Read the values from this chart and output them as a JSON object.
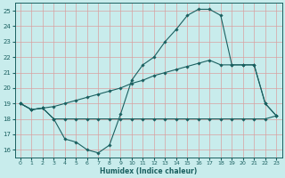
{
  "xlabel": "Humidex (Indice chaleur)",
  "bg_color": "#c8ecec",
  "grid_color": "#d8a0a0",
  "line_color": "#1a6060",
  "xlim": [
    -0.5,
    23.5
  ],
  "ylim": [
    15.5,
    25.5
  ],
  "xticks": [
    0,
    1,
    2,
    3,
    4,
    5,
    6,
    7,
    8,
    9,
    10,
    11,
    12,
    13,
    14,
    15,
    16,
    17,
    18,
    19,
    20,
    21,
    22,
    23
  ],
  "yticks": [
    16,
    17,
    18,
    19,
    20,
    21,
    22,
    23,
    24,
    25
  ],
  "series1_x": [
    0,
    1,
    2,
    3,
    4,
    5,
    6,
    7,
    8,
    9,
    10,
    11,
    12,
    13,
    14,
    15,
    16,
    17,
    18,
    19,
    20,
    21,
    22,
    23
  ],
  "series1_y": [
    19.0,
    18.6,
    18.7,
    18.0,
    18.0,
    18.0,
    18.0,
    18.0,
    18.0,
    18.0,
    18.0,
    18.0,
    18.0,
    18.0,
    18.0,
    18.0,
    18.0,
    18.0,
    18.0,
    18.0,
    18.0,
    18.0,
    18.0,
    18.2
  ],
  "series2_x": [
    0,
    1,
    2,
    3,
    4,
    5,
    6,
    7,
    8,
    9,
    10,
    11,
    12,
    13,
    14,
    15,
    16,
    17,
    18,
    19,
    20,
    21,
    22,
    23
  ],
  "series2_y": [
    19.0,
    18.6,
    18.7,
    18.8,
    19.0,
    19.2,
    19.4,
    19.6,
    19.8,
    20.0,
    20.3,
    20.5,
    20.8,
    21.0,
    21.2,
    21.4,
    21.6,
    21.8,
    21.5,
    21.5,
    21.5,
    21.5,
    19.0,
    18.2
  ],
  "series3_x": [
    0,
    1,
    2,
    3,
    4,
    5,
    6,
    7,
    8,
    9,
    10,
    11,
    12,
    13,
    14,
    15,
    16,
    17,
    18,
    19,
    20,
    21,
    22,
    23
  ],
  "series3_y": [
    19.0,
    18.6,
    18.7,
    18.0,
    16.7,
    16.5,
    16.0,
    15.8,
    16.3,
    18.3,
    20.5,
    21.5,
    22.0,
    23.0,
    23.8,
    24.7,
    25.1,
    25.1,
    24.7,
    21.5,
    21.5,
    21.5,
    19.0,
    18.2
  ]
}
